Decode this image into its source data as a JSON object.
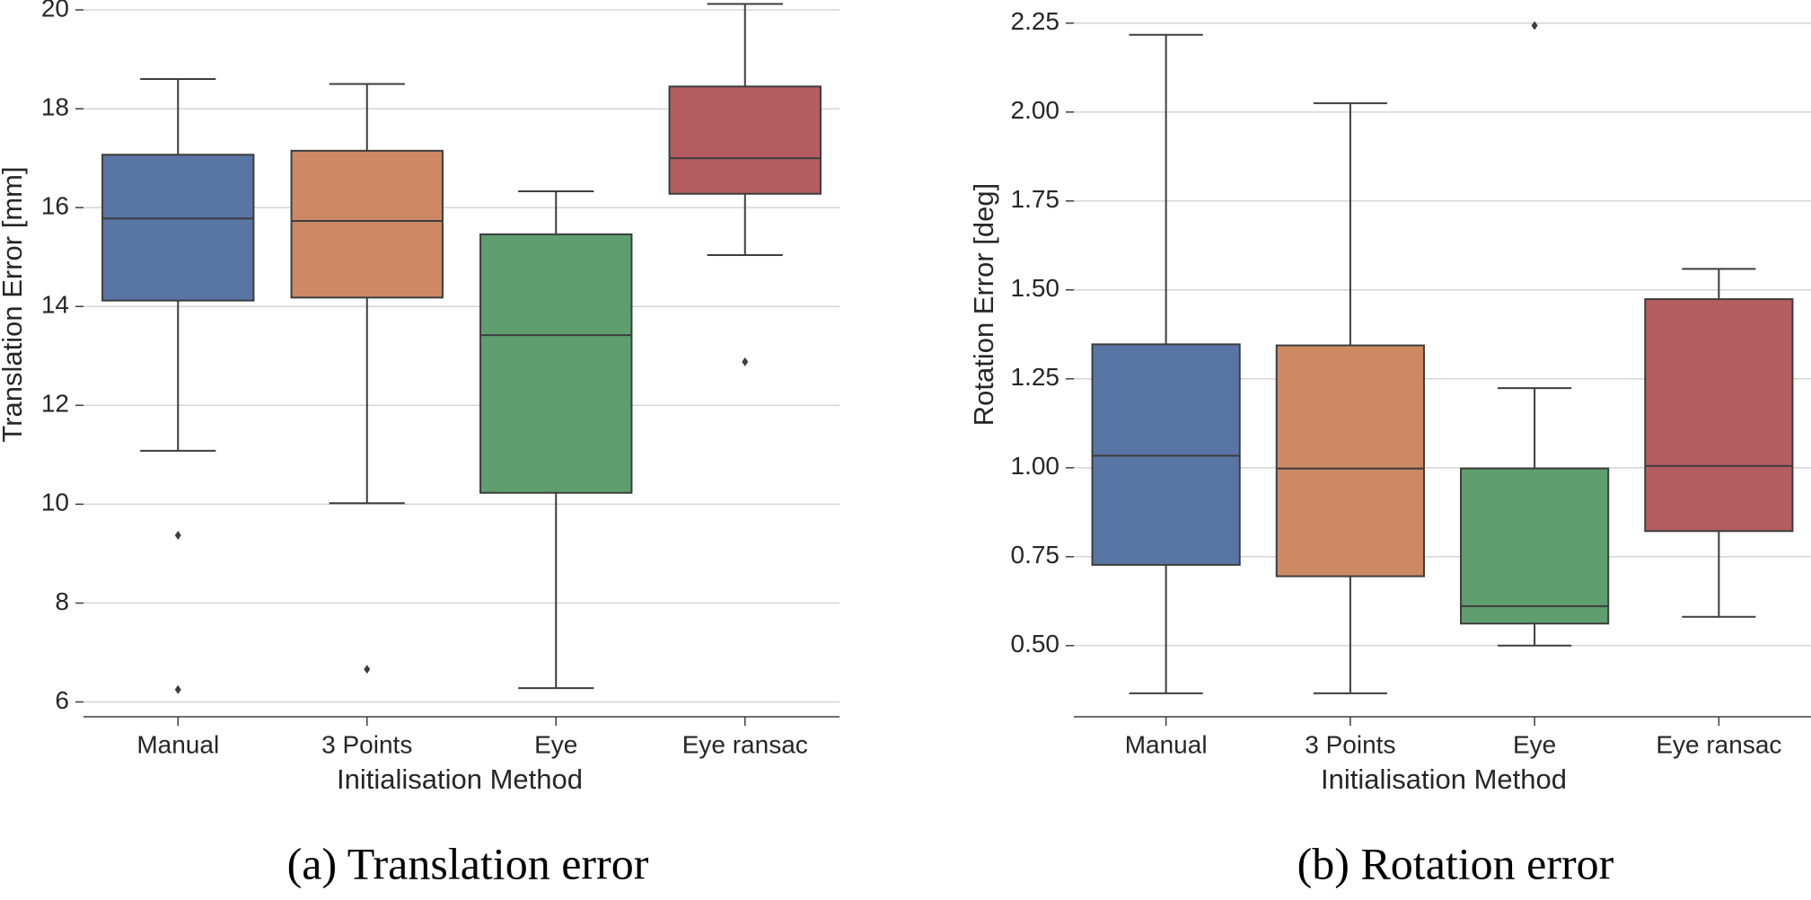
{
  "chart_data": [
    {
      "type": "box",
      "ylabel": "Translation Error [mm]",
      "xlabel": "Initialisation Method",
      "caption": "(a) Translation error",
      "categories": [
        "Manual",
        "3 Points",
        "Eye",
        "Eye ransac"
      ],
      "colors": [
        "#5975a4",
        "#cc8963",
        "#5f9e6e",
        "#b55d60"
      ],
      "boxes": [
        {
          "whislo": 11.08,
          "q1": 14.12,
          "med": 15.78,
          "q3": 17.07,
          "whishi": 18.6,
          "fliers": [
            9.37,
            6.25
          ]
        },
        {
          "whislo": 10.02,
          "q1": 14.18,
          "med": 15.73,
          "q3": 17.15,
          "whishi": 18.5,
          "fliers": [
            6.66
          ]
        },
        {
          "whislo": 6.28,
          "q1": 10.23,
          "med": 13.42,
          "q3": 15.46,
          "whishi": 16.33,
          "fliers": []
        },
        {
          "whislo": 15.04,
          "q1": 16.28,
          "med": 17.0,
          "q3": 18.45,
          "whishi": 20.12,
          "fliers": [
            12.88
          ]
        }
      ],
      "ylim": [
        5.7,
        20.2
      ],
      "yticks": [
        6,
        8,
        10,
        12,
        14,
        16,
        18,
        20
      ],
      "grid": true
    },
    {
      "type": "box",
      "ylabel": "Rotation Error [deg]",
      "xlabel": "Initialisation Method",
      "caption": "(b) Rotation error",
      "categories": [
        "Manual",
        "3 Points",
        "Eye",
        "Eye ransac"
      ],
      "colors": [
        "#5975a4",
        "#cc8963",
        "#5f9e6e",
        "#b55d60"
      ],
      "boxes": [
        {
          "whislo": 0.366,
          "q1": 0.727,
          "med": 1.034,
          "q3": 1.347,
          "whishi": 2.217,
          "fliers": []
        },
        {
          "whislo": 0.366,
          "q1": 0.695,
          "med": 0.998,
          "q3": 1.344,
          "whishi": 2.025,
          "fliers": []
        },
        {
          "whislo": 0.5,
          "q1": 0.562,
          "med": 0.611,
          "q3": 0.998,
          "whishi": 1.224,
          "fliers": [
            2.243
          ]
        },
        {
          "whislo": 0.581,
          "q1": 0.822,
          "med": 1.005,
          "q3": 1.474,
          "whishi": 1.559,
          "fliers": []
        }
      ],
      "ylim": [
        0.3,
        2.315
      ],
      "yticks": [
        {
          "value": 0.5,
          "label": "0.50"
        },
        {
          "value": 0.75,
          "label": "0.75"
        },
        {
          "value": 1.0,
          "label": "1.00"
        },
        {
          "value": 1.25,
          "label": "1.25"
        },
        {
          "value": 1.5,
          "label": "1.50"
        },
        {
          "value": 1.75,
          "label": "1.75"
        },
        {
          "value": 2.0,
          "label": "2.00"
        },
        {
          "value": 2.25,
          "label": "2.25"
        }
      ],
      "grid": true
    }
  ]
}
